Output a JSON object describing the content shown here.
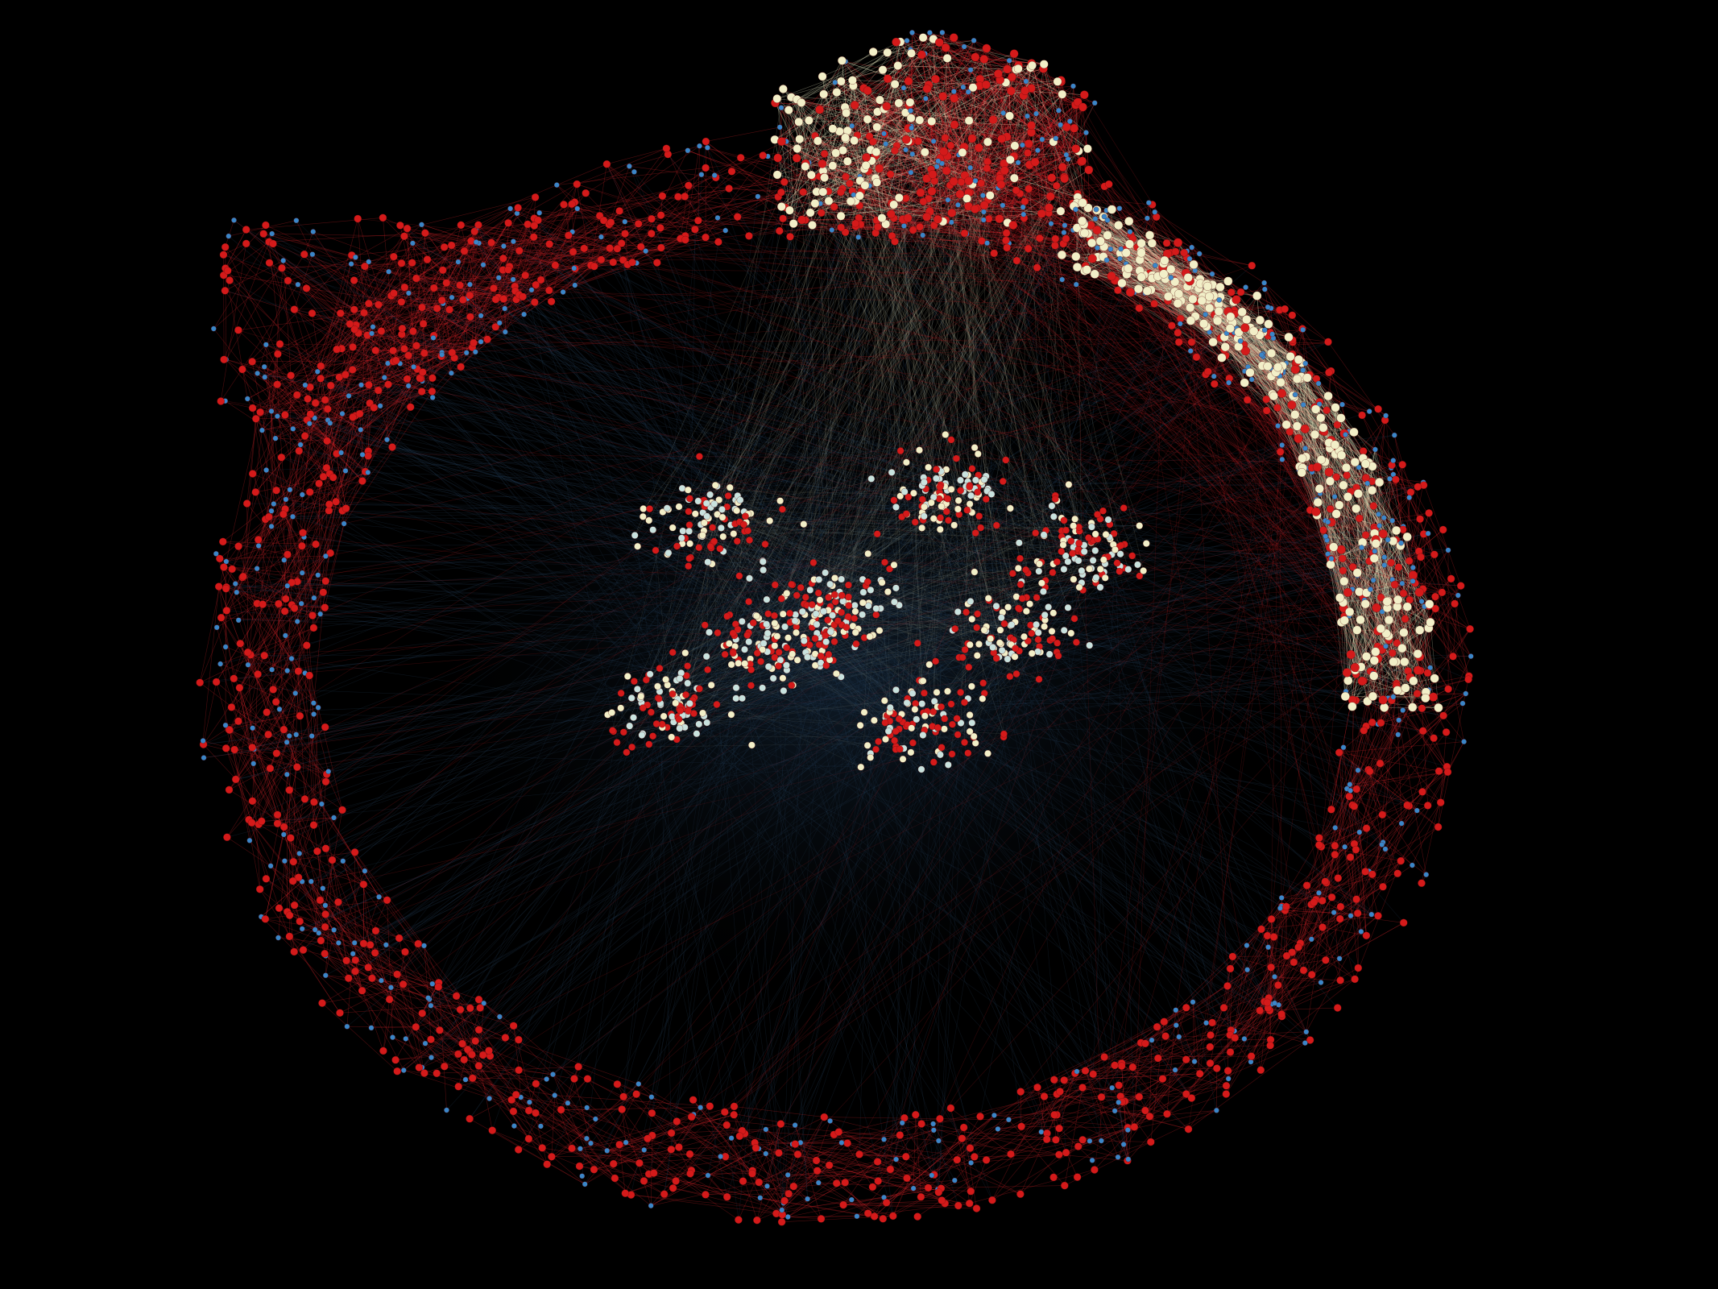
{
  "colors": {
    "background": "#000000",
    "red": "#d41a1a",
    "blue": "#3a86c8",
    "cream": "#f2efc8",
    "pale_cyan": "#c9e2de",
    "edge_red": "#e0242b",
    "edge_cream": "#ecebc4",
    "edge_blue": "#2a4a6a"
  },
  "clusters": [
    {
      "name": "outer-ring",
      "node_kinds": [
        "red",
        "blue"
      ]
    },
    {
      "name": "top-cap",
      "node_kinds": [
        "red",
        "cream",
        "blue"
      ]
    },
    {
      "name": "right-arc",
      "node_kinds": [
        "cream",
        "red",
        "blue"
      ]
    },
    {
      "name": "center-core",
      "node_kinds": [
        "cream",
        "pale_cyan",
        "red"
      ]
    }
  ]
}
